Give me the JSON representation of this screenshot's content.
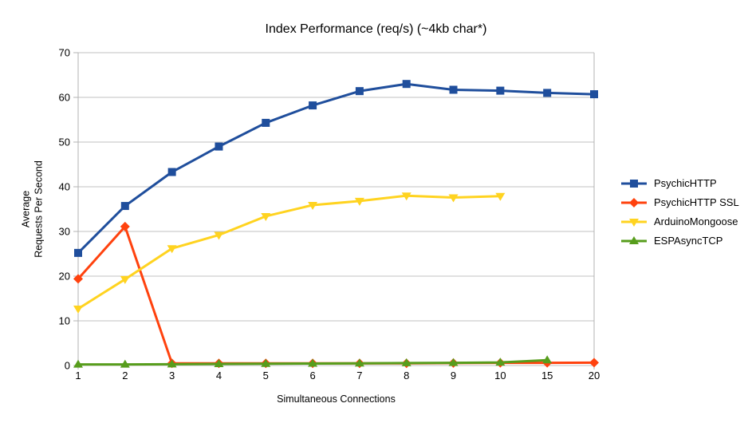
{
  "chart_data": {
    "type": "line",
    "title": "Index Performance (req/s) (~4kb char*)",
    "xlabel": "Simultaneous Connections",
    "ylabel": "Average\nRequests Per Second",
    "categories": [
      "1",
      "2",
      "3",
      "4",
      "5",
      "6",
      "7",
      "8",
      "9",
      "10",
      "15",
      "20"
    ],
    "y_ticks": [
      0,
      10,
      20,
      30,
      40,
      50,
      60,
      70
    ],
    "ylim": [
      0,
      70
    ],
    "grid": "horizontal",
    "legend_position": "right",
    "colors": {
      "grid": "#c0c0c0",
      "axis": "#b3b3b3",
      "text": "#000000"
    },
    "series": [
      {
        "name": "PsychicHTTP",
        "color": "#1f4e9c",
        "marker": "square",
        "values": [
          25.2,
          35.7,
          43.3,
          49.0,
          54.3,
          58.2,
          61.4,
          63.0,
          61.7,
          61.5,
          61.0,
          60.7
        ]
      },
      {
        "name": "PsychicHTTP SSL",
        "color": "#ff420e",
        "marker": "diamond",
        "values": [
          19.4,
          31.1,
          0.5,
          0.5,
          0.5,
          0.5,
          0.5,
          0.5,
          0.55,
          0.6,
          0.6,
          0.65
        ]
      },
      {
        "name": "ArduinoMongoose",
        "color": "#ffd320",
        "marker": "triangle-down",
        "values": [
          12.7,
          19.3,
          26.2,
          29.2,
          33.4,
          35.9,
          36.8,
          38.0,
          37.6,
          37.9,
          null,
          null
        ]
      },
      {
        "name": "ESPAsyncTCP",
        "color": "#579d1c",
        "marker": "triangle-up",
        "values": [
          0.25,
          0.25,
          0.3,
          0.35,
          0.4,
          0.45,
          0.5,
          0.55,
          0.6,
          0.7,
          1.2,
          null
        ]
      }
    ]
  }
}
